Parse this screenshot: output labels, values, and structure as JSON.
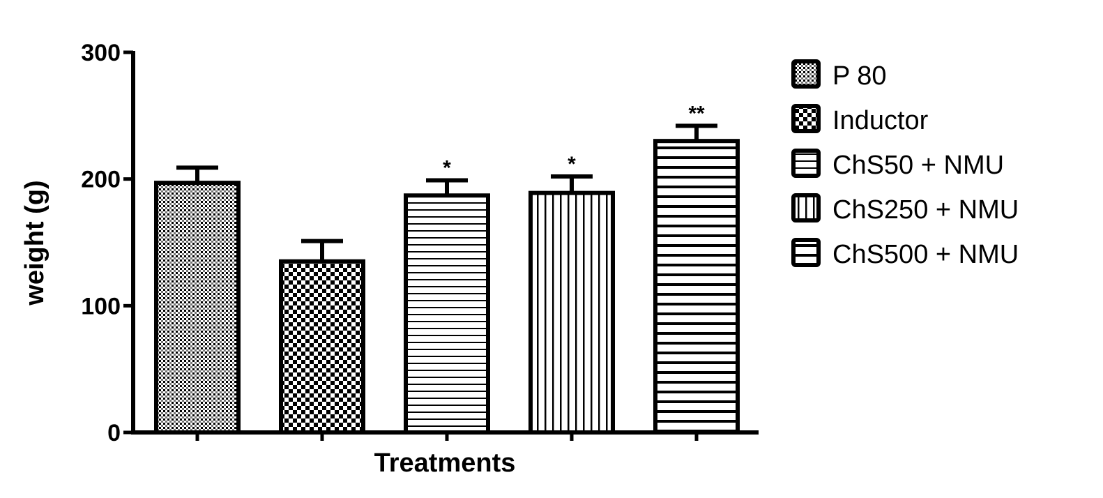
{
  "chart_data": {
    "type": "bar",
    "title": "",
    "xlabel": "Treatments",
    "ylabel": "weight (g)",
    "ylim": [
      0,
      300
    ],
    "yticks": [
      0,
      100,
      200,
      300
    ],
    "categories": [
      "P 80",
      "Inductor",
      "ChS50 + NMU",
      "ChS250 + NMU",
      "ChS500 + NMU"
    ],
    "values": [
      197,
      135,
      187,
      189,
      230
    ],
    "errors": [
      12,
      16,
      12,
      13,
      12
    ],
    "significance": [
      "",
      "",
      "*",
      "*",
      "**"
    ],
    "patterns": [
      "fine-crosshatch",
      "checkerboard",
      "horizontal-thin",
      "vertical",
      "horizontal-thick"
    ],
    "legend": {
      "position": "right",
      "entries": [
        "P 80",
        "Inductor",
        "ChS50 + NMU",
        "ChS250 + NMU",
        "ChS500 + NMU"
      ]
    },
    "grid": false,
    "colors": {
      "ink": "#000000",
      "background": "#ffffff"
    }
  }
}
